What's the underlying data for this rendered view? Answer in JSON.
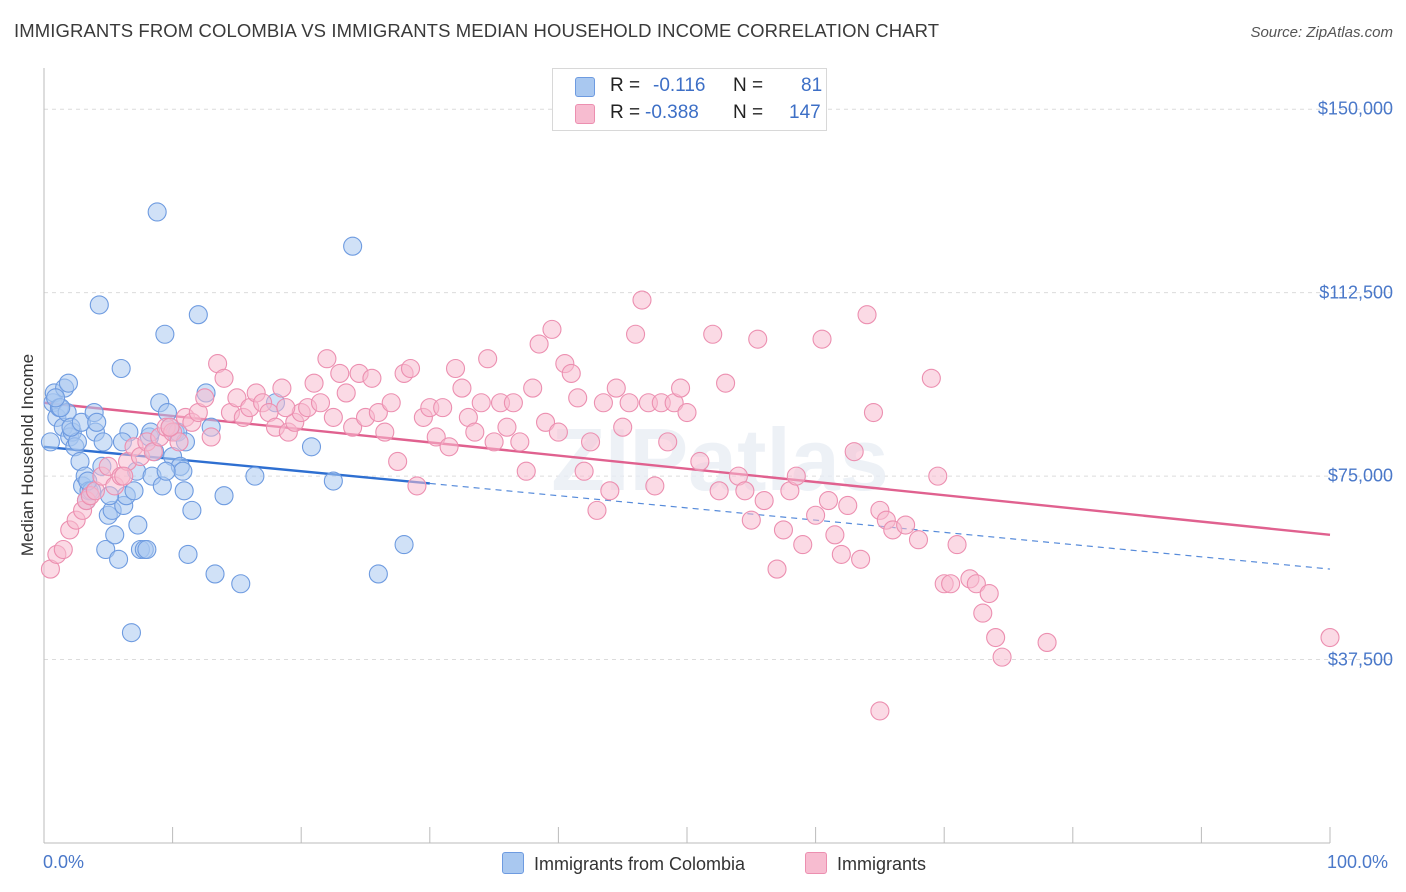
{
  "title": "IMMIGRANTS FROM COLOMBIA VS IMMIGRANTS MEDIAN HOUSEHOLD INCOME CORRELATION CHART",
  "source": "Source: ZipAtlas.com",
  "watermark": "ZIPatlas",
  "legend": {
    "rows": [
      {
        "r_label": "R =",
        "r_value": "-0.116",
        "n_label": "N =",
        "n_value": "81",
        "color": "#a9c8f0",
        "border": "#6e9be0"
      },
      {
        "r_label": "R =",
        "r_value": "-0.388",
        "n_label": "N =",
        "n_value": "147",
        "color": "#f7bcd0",
        "border": "#ec8fb0"
      }
    ]
  },
  "bottom_legend": [
    {
      "label": "Immigrants from Colombia",
      "color": "#a9c8f0",
      "border": "#6e9be0"
    },
    {
      "label": "Immigrants",
      "color": "#f7bcd0",
      "border": "#ec8fb0"
    }
  ],
  "chart_data": {
    "type": "scatter",
    "title": "IMMIGRANTS FROM COLOMBIA VS IMMIGRANTS MEDIAN HOUSEHOLD INCOME CORRELATION CHART",
    "xlabel": "",
    "ylabel": "Median Household Income",
    "xlim": [
      0,
      100
    ],
    "ylim": [
      0,
      157000
    ],
    "x_tick_labels": [
      "0.0%",
      "100.0%"
    ],
    "y_ticks": [
      37500,
      75000,
      112500,
      150000
    ],
    "y_tick_labels": [
      "$37,500",
      "$75,000",
      "$112,500",
      "$150,000"
    ],
    "grid": true,
    "legend_position": "top-center",
    "series": [
      {
        "name": "Immigrants from Colombia",
        "color": "#6e9be0",
        "fill": "#a9c8f0",
        "trend": {
          "x0": 0,
          "y0": 81000,
          "x1": 30,
          "y1": 73500,
          "dashed_to_x": 100,
          "dashed_to_y": 56000,
          "color": "#2e6fd1"
        },
        "points": [
          [
            0.5,
            82000
          ],
          [
            0.7,
            90000
          ],
          [
            0.8,
            92000
          ],
          [
            1.0,
            87000
          ],
          [
            1.2,
            89000
          ],
          [
            1.5,
            85000
          ],
          [
            1.6,
            93000
          ],
          [
            1.8,
            88000
          ],
          [
            2.0,
            83000
          ],
          [
            2.2,
            84000
          ],
          [
            2.4,
            81000
          ],
          [
            2.6,
            82000
          ],
          [
            2.8,
            78000
          ],
          [
            3.0,
            73000
          ],
          [
            3.2,
            75000
          ],
          [
            3.3,
            70000
          ],
          [
            3.5,
            72000
          ],
          [
            3.7,
            72000
          ],
          [
            4.0,
            84000
          ],
          [
            4.3,
            110000
          ],
          [
            4.6,
            82000
          ],
          [
            4.8,
            60000
          ],
          [
            5.0,
            67000
          ],
          [
            5.3,
            68000
          ],
          [
            5.5,
            63000
          ],
          [
            5.8,
            58000
          ],
          [
            6.0,
            97000
          ],
          [
            6.2,
            69000
          ],
          [
            6.4,
            71000
          ],
          [
            6.6,
            84000
          ],
          [
            7.0,
            72000
          ],
          [
            7.2,
            76000
          ],
          [
            7.5,
            60000
          ],
          [
            7.8,
            60000
          ],
          [
            8.0,
            60000
          ],
          [
            8.2,
            83000
          ],
          [
            8.4,
            75000
          ],
          [
            8.6,
            80000
          ],
          [
            8.8,
            129000
          ],
          [
            9.0,
            90000
          ],
          [
            9.2,
            73000
          ],
          [
            9.4,
            104000
          ],
          [
            9.6,
            88000
          ],
          [
            9.8,
            85000
          ],
          [
            10.0,
            79000
          ],
          [
            10.2,
            84000
          ],
          [
            10.4,
            84000
          ],
          [
            10.6,
            77000
          ],
          [
            10.8,
            76000
          ],
          [
            11.0,
            82000
          ],
          [
            11.2,
            59000
          ],
          [
            11.5,
            68000
          ],
          [
            12.0,
            108000
          ],
          [
            12.6,
            92000
          ],
          [
            13.0,
            85000
          ],
          [
            13.3,
            55000
          ],
          [
            14.0,
            71000
          ],
          [
            15.3,
            53000
          ],
          [
            16.4,
            75000
          ],
          [
            18.0,
            90000
          ],
          [
            20.8,
            81000
          ],
          [
            22.5,
            74000
          ],
          [
            24.0,
            122000
          ],
          [
            26.0,
            55000
          ],
          [
            28.0,
            61000
          ],
          [
            3.4,
            74000
          ],
          [
            4.5,
            77000
          ],
          [
            6.8,
            43000
          ],
          [
            1.3,
            89000
          ],
          [
            2.1,
            85000
          ],
          [
            2.9,
            86000
          ],
          [
            5.1,
            71000
          ],
          [
            7.3,
            65000
          ],
          [
            9.5,
            76000
          ],
          [
            10.9,
            72000
          ],
          [
            3.9,
            88000
          ],
          [
            4.1,
            86000
          ],
          [
            6.1,
            82000
          ],
          [
            8.3,
            84000
          ],
          [
            1.9,
            94000
          ],
          [
            0.9,
            91000
          ]
        ]
      },
      {
        "name": "Immigrants",
        "color": "#ec8fb0",
        "fill": "#f7bcd0",
        "trend": {
          "x0": 0,
          "y0": 90000,
          "x1": 100,
          "y1": 63000,
          "color": "#e0618f"
        },
        "points": [
          [
            0.5,
            56000
          ],
          [
            1.0,
            59000
          ],
          [
            1.5,
            60000
          ],
          [
            2.0,
            64000
          ],
          [
            2.5,
            66000
          ],
          [
            3.0,
            68000
          ],
          [
            3.3,
            70000
          ],
          [
            3.6,
            71000
          ],
          [
            4.0,
            72000
          ],
          [
            4.5,
            75000
          ],
          [
            5.0,
            77000
          ],
          [
            5.5,
            73000
          ],
          [
            6.0,
            75000
          ],
          [
            6.5,
            78000
          ],
          [
            7.0,
            81000
          ],
          [
            7.5,
            79000
          ],
          [
            8.0,
            82000
          ],
          [
            8.5,
            80000
          ],
          [
            9.0,
            83000
          ],
          [
            9.5,
            85000
          ],
          [
            10.0,
            84000
          ],
          [
            10.5,
            82000
          ],
          [
            11.0,
            87000
          ],
          [
            11.5,
            86000
          ],
          [
            12.0,
            88000
          ],
          [
            12.5,
            91000
          ],
          [
            13.0,
            83000
          ],
          [
            13.5,
            98000
          ],
          [
            14.0,
            95000
          ],
          [
            14.5,
            88000
          ],
          [
            15.0,
            91000
          ],
          [
            15.5,
            87000
          ],
          [
            16.0,
            89000
          ],
          [
            16.5,
            92000
          ],
          [
            17.0,
            90000
          ],
          [
            17.5,
            88000
          ],
          [
            18.0,
            85000
          ],
          [
            18.5,
            93000
          ],
          [
            19.0,
            84000
          ],
          [
            19.5,
            86000
          ],
          [
            20.0,
            88000
          ],
          [
            20.5,
            89000
          ],
          [
            21.0,
            94000
          ],
          [
            21.5,
            90000
          ],
          [
            22.0,
            99000
          ],
          [
            22.5,
            87000
          ],
          [
            23.0,
            96000
          ],
          [
            23.5,
            92000
          ],
          [
            24.0,
            85000
          ],
          [
            24.5,
            96000
          ],
          [
            25.0,
            87000
          ],
          [
            25.5,
            95000
          ],
          [
            26.0,
            88000
          ],
          [
            26.5,
            84000
          ],
          [
            27.0,
            90000
          ],
          [
            27.5,
            78000
          ],
          [
            28.0,
            96000
          ],
          [
            28.5,
            97000
          ],
          [
            29.0,
            73000
          ],
          [
            29.5,
            87000
          ],
          [
            30.0,
            89000
          ],
          [
            30.5,
            83000
          ],
          [
            31.0,
            89000
          ],
          [
            31.5,
            81000
          ],
          [
            32.0,
            97000
          ],
          [
            32.5,
            93000
          ],
          [
            33.0,
            87000
          ],
          [
            33.5,
            84000
          ],
          [
            34.0,
            90000
          ],
          [
            34.5,
            99000
          ],
          [
            35.0,
            82000
          ],
          [
            35.5,
            90000
          ],
          [
            36.0,
            85000
          ],
          [
            36.5,
            90000
          ],
          [
            37.0,
            82000
          ],
          [
            37.5,
            76000
          ],
          [
            38.0,
            93000
          ],
          [
            38.5,
            102000
          ],
          [
            39.0,
            86000
          ],
          [
            39.5,
            105000
          ],
          [
            40.0,
            84000
          ],
          [
            40.5,
            98000
          ],
          [
            41.0,
            96000
          ],
          [
            41.5,
            91000
          ],
          [
            42.0,
            76000
          ],
          [
            42.5,
            82000
          ],
          [
            43.0,
            68000
          ],
          [
            43.5,
            90000
          ],
          [
            44.0,
            72000
          ],
          [
            44.5,
            93000
          ],
          [
            45.0,
            85000
          ],
          [
            45.5,
            90000
          ],
          [
            46.0,
            104000
          ],
          [
            46.5,
            111000
          ],
          [
            47.0,
            90000
          ],
          [
            47.5,
            73000
          ],
          [
            48.0,
            90000
          ],
          [
            48.5,
            82000
          ],
          [
            49.0,
            90000
          ],
          [
            49.5,
            93000
          ],
          [
            50.0,
            88000
          ],
          [
            51.0,
            78000
          ],
          [
            52.0,
            104000
          ],
          [
            52.5,
            72000
          ],
          [
            53.0,
            94000
          ],
          [
            54.0,
            75000
          ],
          [
            54.5,
            72000
          ],
          [
            55.0,
            66000
          ],
          [
            56.0,
            70000
          ],
          [
            57.0,
            56000
          ],
          [
            57.5,
            64000
          ],
          [
            58.0,
            72000
          ],
          [
            58.5,
            75000
          ],
          [
            59.0,
            61000
          ],
          [
            60.0,
            67000
          ],
          [
            61.0,
            70000
          ],
          [
            61.5,
            63000
          ],
          [
            62.0,
            59000
          ],
          [
            62.5,
            69000
          ],
          [
            63.0,
            80000
          ],
          [
            63.5,
            58000
          ],
          [
            64.0,
            108000
          ],
          [
            64.5,
            88000
          ],
          [
            65.0,
            68000
          ],
          [
            65.5,
            66000
          ],
          [
            66.0,
            64000
          ],
          [
            67.0,
            65000
          ],
          [
            68.0,
            62000
          ],
          [
            69.0,
            95000
          ],
          [
            69.5,
            75000
          ],
          [
            70.0,
            53000
          ],
          [
            70.5,
            53000
          ],
          [
            71.0,
            61000
          ],
          [
            72.0,
            54000
          ],
          [
            72.5,
            53000
          ],
          [
            73.0,
            47000
          ],
          [
            73.5,
            51000
          ],
          [
            74.0,
            42000
          ],
          [
            74.5,
            38000
          ],
          [
            78.0,
            41000
          ],
          [
            65.0,
            27000
          ],
          [
            100.0,
            42000
          ],
          [
            55.5,
            103000
          ],
          [
            60.5,
            103000
          ],
          [
            6.2,
            75000
          ],
          [
            9.8,
            85000
          ],
          [
            18.8,
            89000
          ]
        ]
      }
    ]
  }
}
